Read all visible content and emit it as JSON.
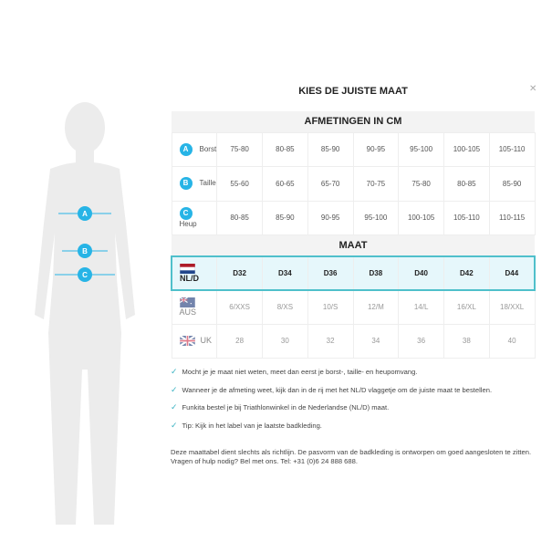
{
  "title": "KIES DE JUISTE MAAT",
  "close_icon": "close-icon",
  "accent": "#27b4e6",
  "highlight_border": "#4fc0cb",
  "measurements": {
    "header": "AFMETINGEN IN CM",
    "rows": [
      {
        "letter": "A",
        "label": "Borst",
        "values": [
          "75-80",
          "80-85",
          "85-90",
          "90-95",
          "95-100",
          "100-105",
          "105-110"
        ]
      },
      {
        "letter": "B",
        "label": "Taille",
        "values": [
          "55-60",
          "60-65",
          "65-70",
          "70-75",
          "75-80",
          "80-85",
          "85-90"
        ]
      },
      {
        "letter": "C",
        "label": "Heup",
        "values": [
          "80-85",
          "85-90",
          "90-95",
          "95-100",
          "100-105",
          "105-110",
          "110-115"
        ]
      }
    ]
  },
  "sizes": {
    "header": "MAAT",
    "rows": [
      {
        "flag": "netherlands-flag",
        "label": "NL/D",
        "values": [
          "D32",
          "D34",
          "D36",
          "D38",
          "D40",
          "D42",
          "D44"
        ]
      },
      {
        "flag": "australia-flag",
        "label": "AUS",
        "values": [
          "6/XXS",
          "8/XS",
          "10/S",
          "12/M",
          "14/L",
          "16/XL",
          "18/XXL"
        ]
      },
      {
        "flag": "uk-flag",
        "label": "UK",
        "values": [
          "28",
          "30",
          "32",
          "34",
          "36",
          "38",
          "40"
        ]
      }
    ]
  },
  "tips": [
    "Mocht je je maat niet weten, meet dan eerst je borst-, taille- en heupomvang.",
    "Wanneer je de afmeting weet, kijk dan in de rij met het NL/D vlaggetje om de juiste maat te bestellen.",
    "Funkita bestel je bij Triathlonwinkel in de Nederlandse (NL/D) maat.",
    "Tip: Kijk in het label van je laatste badkleding."
  ],
  "footer": "Deze maattabel dient slechts als richtlijn. De pasvorm van de badkleding is ontworpen om goed aangesloten te zitten. Vragen of hulp nodig? Bel met ons. Tel: +31 (0)6 24 888 688."
}
